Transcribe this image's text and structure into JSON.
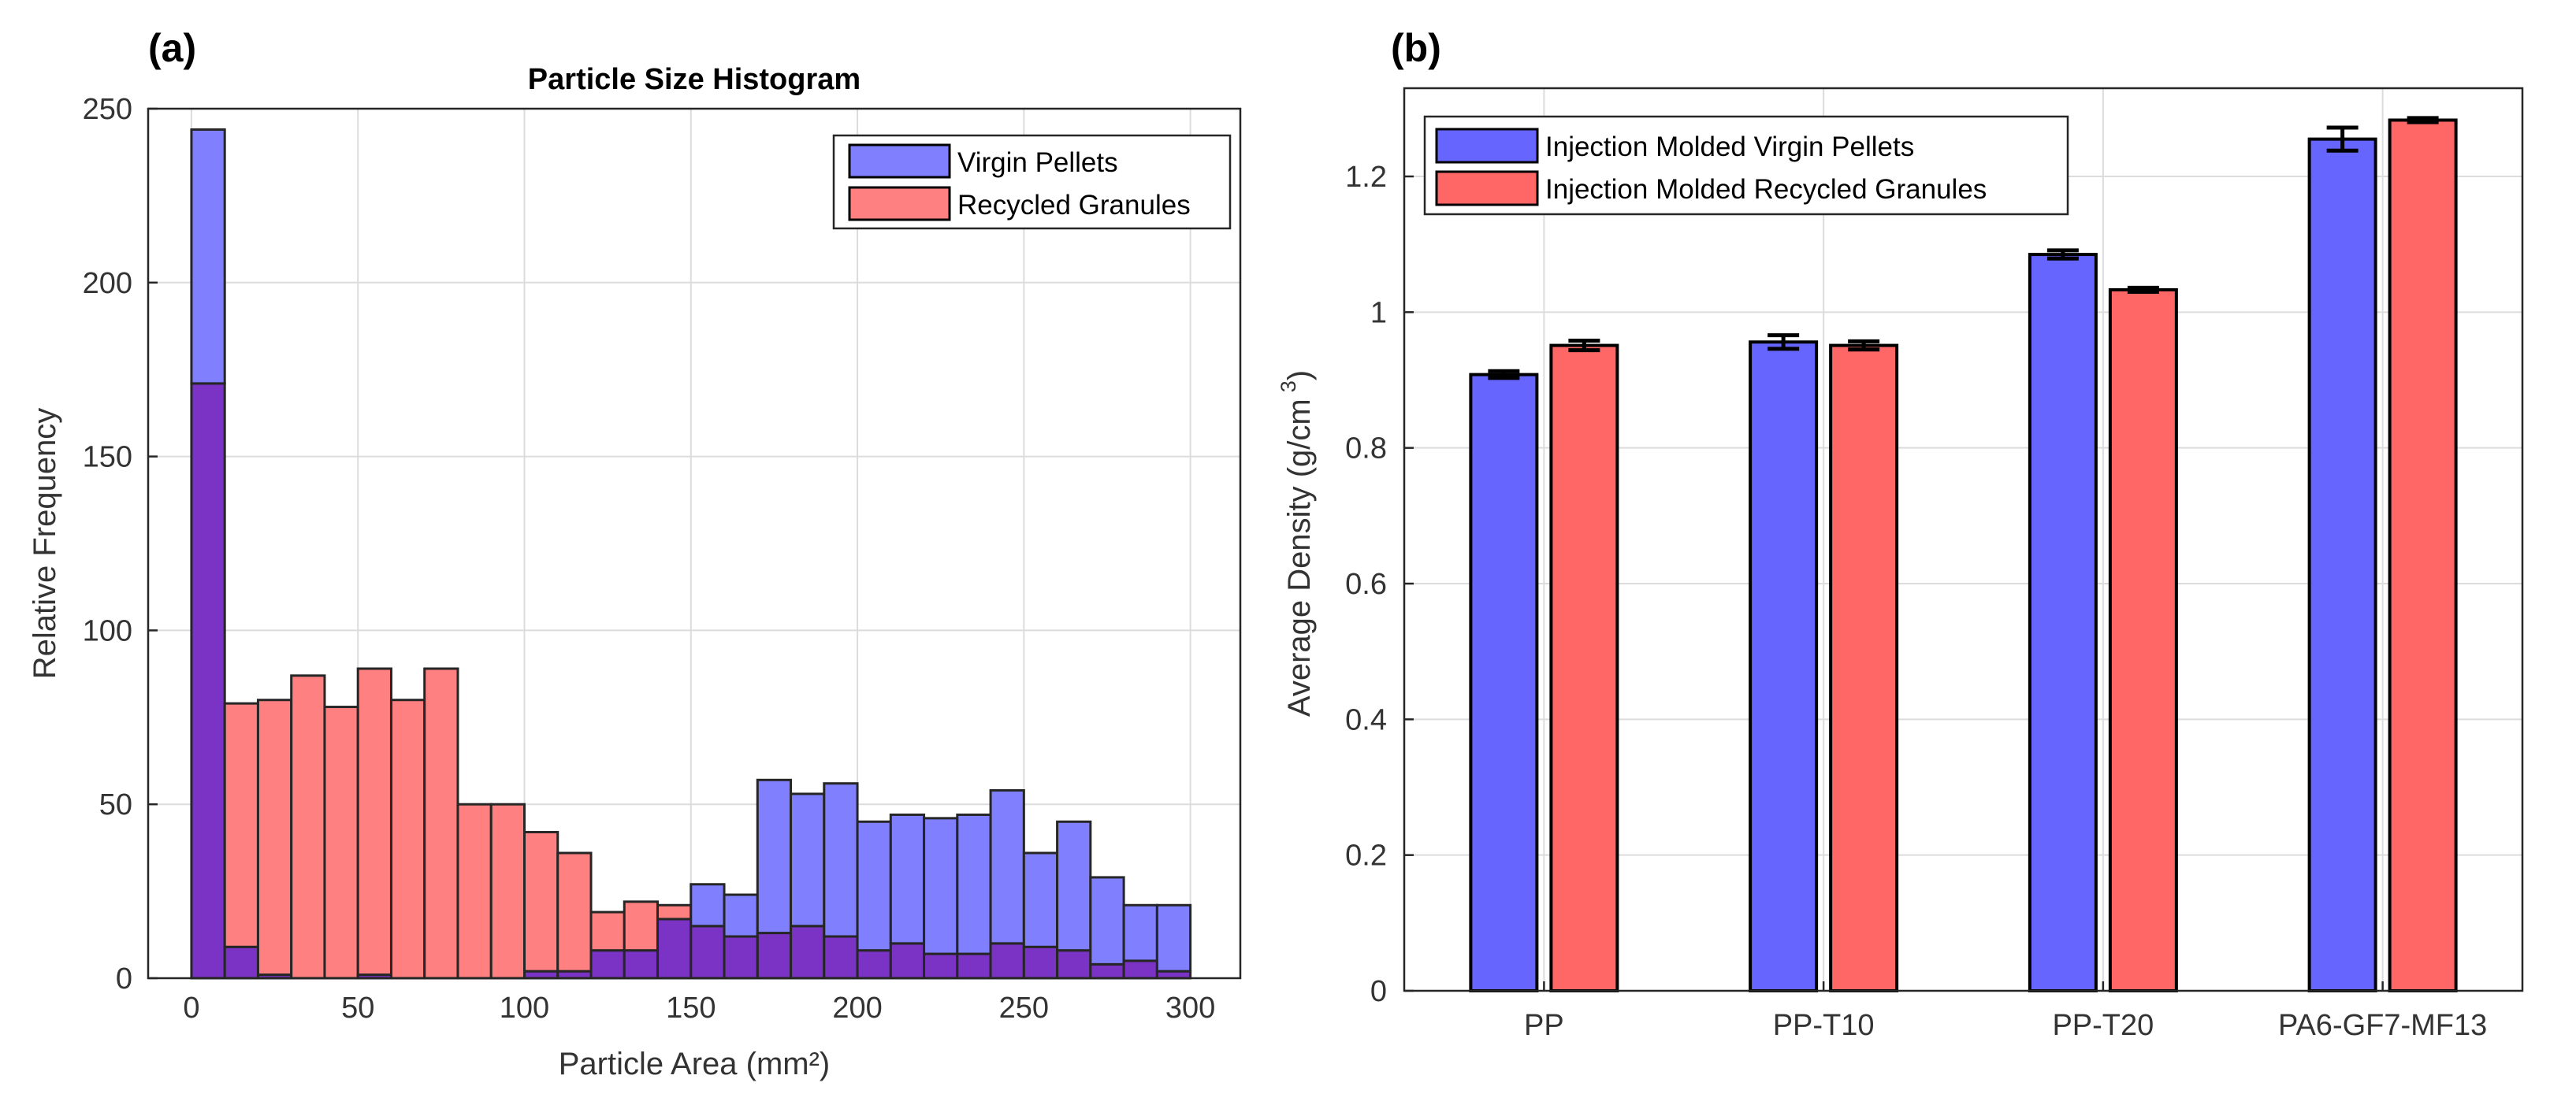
{
  "chart_data": [
    {
      "panel_label": "(a)",
      "type": "bar",
      "subtype": "histogram",
      "title": "Particle Size Histogram",
      "xlabel": "Particle Area (mm²)",
      "ylabel": "Relative Frequency",
      "xlim": [
        -13,
        315
      ],
      "ylim": [
        0,
        250
      ],
      "xticks": [
        0,
        50,
        100,
        150,
        200,
        250,
        300
      ],
      "yticks": [
        0,
        50,
        100,
        150,
        200,
        250
      ],
      "grid": true,
      "legend_position": "top-right",
      "bin_edges": [
        0,
        10,
        20,
        30,
        40,
        50,
        60,
        70,
        80,
        90,
        100,
        110,
        120,
        130,
        140,
        150,
        160,
        170,
        180,
        190,
        200,
        210,
        220,
        230,
        240,
        250,
        260,
        270,
        280,
        290,
        300
      ],
      "series": [
        {
          "name": "Virgin Pellets",
          "color": "#6666ff",
          "fill_color": "#8080ff",
          "values": [
            244,
            9,
            1,
            0,
            0,
            1,
            0,
            0,
            0,
            0,
            2,
            2,
            8,
            8,
            17,
            27,
            24,
            57,
            53,
            56,
            45,
            47,
            46,
            47,
            54,
            36,
            45,
            29,
            21,
            21
          ]
        },
        {
          "name": "Recycled Granules",
          "color": "#ff6666",
          "fill_color": "#ff8080",
          "values": [
            171,
            79,
            80,
            87,
            78,
            89,
            80,
            89,
            50,
            50,
            42,
            36,
            19,
            22,
            21,
            15,
            12,
            13,
            15,
            12,
            8,
            10,
            7,
            7,
            10,
            9,
            8,
            4,
            5,
            2
          ]
        }
      ]
    },
    {
      "panel_label": "(b)",
      "type": "bar",
      "subtype": "grouped-with-errorbars",
      "title": "",
      "xlabel": "",
      "ylabel": "Average Density (g/cm",
      "ylabel_superscript": "3",
      "ylabel_close": ")",
      "ylim": [
        0,
        1.33
      ],
      "yticks": [
        0,
        0.2,
        0.4,
        0.6,
        0.8,
        1,
        1.2
      ],
      "ytick_labels": [
        "0",
        "0.2",
        "0.4",
        "0.6",
        "0.8",
        "1",
        "1.2"
      ],
      "grid": true,
      "legend_position": "top-left",
      "categories": [
        "PP",
        "PP-T10",
        "PP-T20",
        "PA6-GF7-MF13"
      ],
      "series": [
        {
          "name": "Injection Molded Virgin Pellets",
          "color": "#6666ff",
          "values": [
            0.908,
            0.956,
            1.085,
            1.255
          ],
          "errors": [
            0.005,
            0.01,
            0.006,
            0.017
          ]
        },
        {
          "name": "Injection Molded Recycled Granules",
          "color": "#ff6666",
          "values": [
            0.951,
            0.951,
            1.033,
            1.283
          ],
          "errors": [
            0.007,
            0.006,
            0.003,
            0.003
          ]
        }
      ]
    }
  ]
}
